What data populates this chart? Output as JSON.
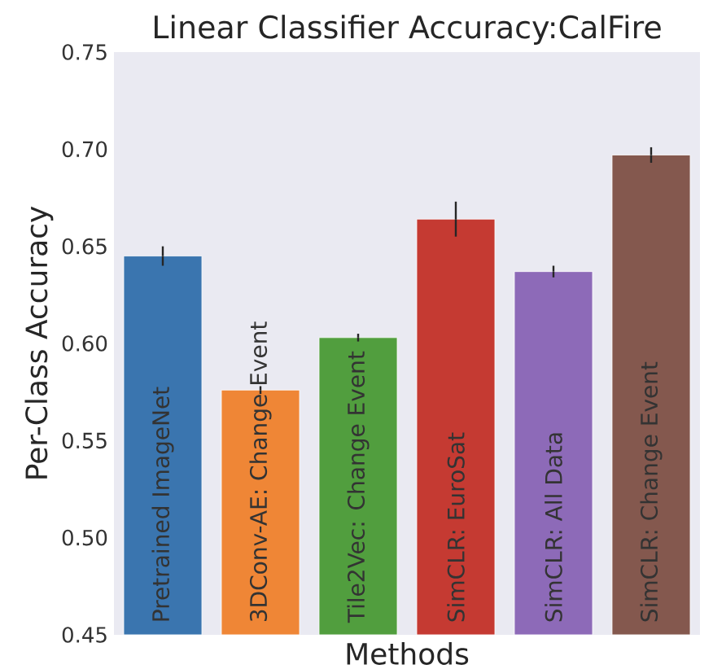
{
  "chart_data": {
    "type": "bar",
    "title": "Linear Classifier Accuracy:CalFire",
    "xlabel": "Methods",
    "ylabel": "Per-Class Accuracy",
    "categories": [
      "Pretrained ImageNet",
      "3DConv-AE: Change Event",
      "Tile2Vec: Change Event",
      "SimCLR: EuroSat",
      "SimCLR: All Data",
      "SimCLR: Change Event"
    ],
    "values": [
      0.645,
      0.576,
      0.603,
      0.664,
      0.637,
      0.697
    ],
    "errors": [
      0.005,
      0.002,
      0.002,
      0.009,
      0.003,
      0.004
    ],
    "colors": [
      "#3a75af",
      "#ef8636",
      "#519e3e",
      "#c53a32",
      "#8d6ab8",
      "#84584e"
    ],
    "ylim": [
      0.45,
      0.75
    ],
    "yticks": [
      0.45,
      {
        "value": 0.5,
        "label": "0.50"
      },
      0.55,
      {
        "value": 0.6,
        "label": "0.60"
      },
      0.65,
      {
        "value": 0.7,
        "label": "0.70"
      },
      0.75
    ],
    "grid": false
  }
}
